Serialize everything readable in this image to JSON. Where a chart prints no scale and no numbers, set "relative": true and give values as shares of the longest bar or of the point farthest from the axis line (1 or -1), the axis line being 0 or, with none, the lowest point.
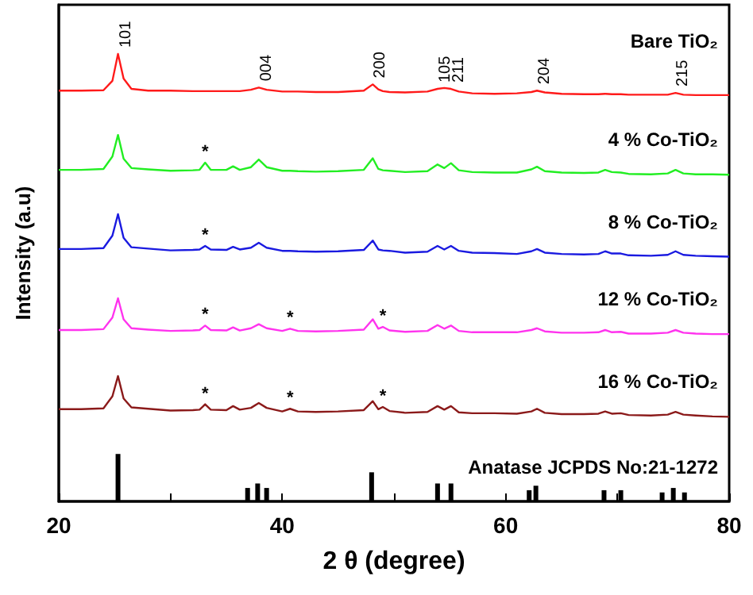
{
  "chart_data": {
    "type": "line",
    "relative": true,
    "xlabel": "2 θ (degree)",
    "ylabel": "Intensity (a.u)",
    "xlim": [
      20,
      80
    ],
    "xticks": [
      20,
      {
        "value": 30,
        "label": null
      },
      40,
      {
        "value": 50,
        "label": null
      },
      60,
      {
        "value": 70,
        "label": null
      },
      80
    ],
    "legend": false,
    "grid": false,
    "marker": "none",
    "line_style": "solid",
    "x": [
      20,
      22,
      24,
      24.8,
      25.3,
      25.8,
      26.5,
      28,
      30,
      32,
      32.6,
      33.1,
      33.6,
      35,
      35.6,
      36.2,
      37.2,
      37.9,
      38.6,
      40,
      40.7,
      41.4,
      43,
      45,
      47.3,
      48.1,
      48.6,
      49.0,
      49.6,
      51,
      53,
      53.9,
      54.5,
      55.1,
      55.8,
      57,
      59,
      61,
      62.3,
      62.8,
      63.5,
      65,
      67,
      68.3,
      68.9,
      69.5,
      70.3,
      71,
      73,
      74.5,
      75.2,
      75.9,
      77,
      78.5,
      80
    ],
    "series": [
      {
        "name": "Bare TiO₂",
        "color": "#ff1a1a",
        "values": [
          0.918,
          0.918,
          0.919,
          0.94,
          1.0,
          0.945,
          0.922,
          0.918,
          0.918,
          0.917,
          0.917,
          0.917,
          0.917,
          0.917,
          0.917,
          0.917,
          0.92,
          0.925,
          0.92,
          0.916,
          0.916,
          0.916,
          0.915,
          0.915,
          0.918,
          0.932,
          0.921,
          0.917,
          0.915,
          0.914,
          0.916,
          0.922,
          0.924,
          0.922,
          0.916,
          0.912,
          0.911,
          0.912,
          0.915,
          0.918,
          0.914,
          0.911,
          0.91,
          0.91,
          0.911,
          0.91,
          0.91,
          0.909,
          0.909,
          0.909,
          0.913,
          0.909,
          0.908,
          0.908,
          0.908
        ]
      },
      {
        "name": "4 % Co-TiO₂",
        "color": "#22ee22",
        "values": [
          0.741,
          0.741,
          0.743,
          0.771,
          0.819,
          0.766,
          0.745,
          0.742,
          0.739,
          0.74,
          0.741,
          0.757,
          0.741,
          0.741,
          0.749,
          0.741,
          0.747,
          0.764,
          0.747,
          0.739,
          0.739,
          0.738,
          0.737,
          0.738,
          0.741,
          0.767,
          0.743,
          0.74,
          0.739,
          0.736,
          0.738,
          0.753,
          0.745,
          0.756,
          0.74,
          0.736,
          0.735,
          0.735,
          0.742,
          0.748,
          0.738,
          0.735,
          0.734,
          0.735,
          0.741,
          0.736,
          0.735,
          0.732,
          0.731,
          0.733,
          0.741,
          0.733,
          0.731,
          0.731,
          0.73
        ]
      },
      {
        "name": "8 % Co-TiO₂",
        "color": "#1a1ae0",
        "values": [
          0.564,
          0.564,
          0.566,
          0.594,
          0.642,
          0.589,
          0.568,
          0.565,
          0.561,
          0.562,
          0.563,
          0.571,
          0.563,
          0.562,
          0.569,
          0.563,
          0.567,
          0.578,
          0.567,
          0.56,
          0.56,
          0.559,
          0.558,
          0.559,
          0.562,
          0.583,
          0.563,
          0.561,
          0.56,
          0.556,
          0.558,
          0.571,
          0.563,
          0.571,
          0.56,
          0.556,
          0.555,
          0.553,
          0.559,
          0.564,
          0.556,
          0.553,
          0.552,
          0.553,
          0.559,
          0.554,
          0.554,
          0.55,
          0.549,
          0.551,
          0.559,
          0.551,
          0.549,
          0.548,
          0.547
        ]
      },
      {
        "name": "12 % Co-TiO₂",
        "color": "#ff33ee",
        "values": [
          0.383,
          0.383,
          0.385,
          0.411,
          0.454,
          0.407,
          0.387,
          0.384,
          0.381,
          0.382,
          0.383,
          0.393,
          0.383,
          0.382,
          0.389,
          0.382,
          0.387,
          0.396,
          0.387,
          0.381,
          0.386,
          0.381,
          0.38,
          0.381,
          0.384,
          0.407,
          0.386,
          0.39,
          0.382,
          0.379,
          0.381,
          0.394,
          0.386,
          0.393,
          0.381,
          0.378,
          0.378,
          0.378,
          0.383,
          0.387,
          0.38,
          0.377,
          0.377,
          0.378,
          0.383,
          0.378,
          0.379,
          0.375,
          0.375,
          0.377,
          0.383,
          0.377,
          0.375,
          0.374,
          0.374
        ]
      },
      {
        "name": "16 % Co-TiO₂",
        "color": "#8b1a1a",
        "values": [
          0.206,
          0.206,
          0.208,
          0.235,
          0.28,
          0.23,
          0.21,
          0.207,
          0.203,
          0.204,
          0.205,
          0.217,
          0.205,
          0.204,
          0.213,
          0.205,
          0.209,
          0.22,
          0.209,
          0.201,
          0.207,
          0.201,
          0.2,
          0.201,
          0.204,
          0.224,
          0.206,
          0.211,
          0.202,
          0.198,
          0.2,
          0.213,
          0.205,
          0.213,
          0.199,
          0.197,
          0.197,
          0.196,
          0.201,
          0.207,
          0.198,
          0.195,
          0.195,
          0.196,
          0.201,
          0.196,
          0.197,
          0.193,
          0.192,
          0.194,
          0.2,
          0.194,
          0.192,
          0.19,
          0.189
        ]
      },
      {
        "name": "Anatase JCPDS No:21-1272",
        "type": "bar",
        "color": "#000000",
        "x": [
          25.3,
          36.9,
          37.8,
          38.6,
          48.0,
          53.9,
          55.1,
          62.1,
          62.7,
          68.8,
          70.3,
          74.0,
          75.0,
          76.0
        ],
        "values": [
          0.106,
          0.03,
          0.04,
          0.03,
          0.065,
          0.04,
          0.04,
          0.025,
          0.035,
          0.025,
          0.025,
          0.02,
          0.03,
          0.02
        ]
      }
    ],
    "annotations": [
      {
        "text": "101",
        "x": 25.3,
        "y": 1.0
      },
      {
        "text": "004",
        "x": 37.9,
        "y": 0.925
      },
      {
        "text": "200",
        "x": 48.1,
        "y": 0.932
      },
      {
        "text": "105",
        "x": 53.9,
        "y": 0.922
      },
      {
        "text": "211",
        "x": 55.1,
        "y": 0.922
      },
      {
        "text": "204",
        "x": 62.8,
        "y": 0.918
      },
      {
        "text": "215",
        "x": 75.2,
        "y": 0.913
      },
      {
        "text": "*",
        "x": 33.1,
        "y": 0.757
      },
      {
        "text": "*",
        "x": 33.1,
        "y": 0.571
      },
      {
        "text": "*",
        "x": 33.1,
        "y": 0.393
      },
      {
        "text": "*",
        "x": 40.7,
        "y": 0.386
      },
      {
        "text": "*",
        "x": 49.0,
        "y": 0.39
      },
      {
        "text": "*",
        "x": 33.1,
        "y": 0.217
      },
      {
        "text": "*",
        "x": 40.7,
        "y": 0.207
      },
      {
        "text": "*",
        "x": 49.0,
        "y": 0.211
      }
    ]
  }
}
